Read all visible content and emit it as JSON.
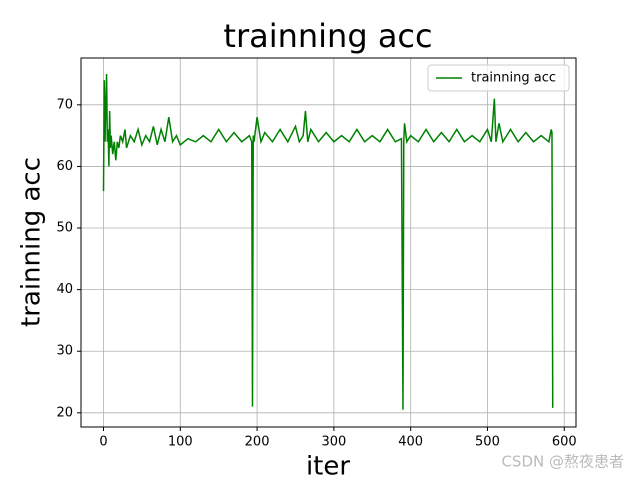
{
  "chart_data": {
    "type": "line",
    "title": "trainning acc",
    "x_label": "iter",
    "y_label": "trainning acc",
    "x": [
      0,
      1,
      2,
      3,
      4,
      5,
      6,
      7,
      8,
      9,
      10,
      12,
      14,
      16,
      18,
      20,
      22,
      25,
      28,
      30,
      35,
      40,
      45,
      50,
      55,
      60,
      65,
      70,
      75,
      80,
      85,
      90,
      95,
      100,
      110,
      120,
      130,
      140,
      150,
      160,
      170,
      180,
      190,
      193,
      194,
      195,
      196,
      200,
      205,
      210,
      220,
      230,
      240,
      250,
      255,
      260,
      263,
      266,
      270,
      280,
      290,
      300,
      310,
      320,
      330,
      340,
      350,
      360,
      370,
      380,
      388,
      390,
      391,
      392,
      395,
      400,
      410,
      420,
      430,
      440,
      450,
      460,
      470,
      480,
      490,
      500,
      505,
      509,
      511,
      515,
      520,
      530,
      540,
      550,
      560,
      570,
      580,
      583,
      584,
      585
    ],
    "series": [
      {
        "name": "trainning acc",
        "color": "#008000",
        "values": [
          56,
          74,
          64,
          70,
          75,
          64,
          66,
          60,
          69,
          63,
          65,
          62,
          64,
          61,
          64,
          63,
          65,
          64,
          66,
          63,
          65,
          64,
          66,
          63.5,
          65,
          64,
          66.5,
          63.5,
          66,
          64,
          68,
          64,
          65,
          63.5,
          64.5,
          64,
          65,
          64,
          66,
          64,
          65.5,
          64,
          65,
          64,
          21,
          65,
          64,
          68,
          64,
          65.5,
          64,
          66,
          64,
          66.5,
          64,
          65,
          69,
          64,
          66,
          64,
          65.5,
          64,
          65,
          64,
          66,
          64,
          65,
          64,
          66,
          64,
          64.5,
          20.5,
          64,
          67,
          64,
          65,
          64,
          66,
          64,
          65.5,
          64,
          66,
          64,
          65,
          64,
          66,
          64,
          71,
          64,
          67,
          64,
          66,
          64,
          65.5,
          64,
          65,
          64,
          66,
          65.5,
          20.8
        ]
      }
    ],
    "xlim": [
      -29.3,
      615.3
    ],
    "ylim": [
      17.7,
      77.6
    ],
    "xticks": [
      0,
      100,
      200,
      300,
      400,
      500,
      600
    ],
    "yticks": [
      20,
      30,
      40,
      50,
      60,
      70
    ],
    "grid": true,
    "legend": "upper right"
  },
  "watermark": "CSDN @熬夜患者"
}
